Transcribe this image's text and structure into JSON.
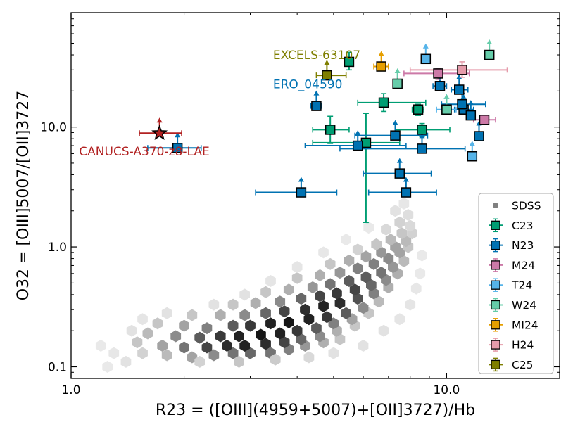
{
  "chart_data": {
    "type": "scatter",
    "title": "",
    "xlabel": "R23 = ([OIII](4959+5007)+[OII]3727)/Hb",
    "ylabel": "O32 = [OIII]5007/[OII]3727",
    "xscale": "log",
    "yscale": "log",
    "xlim": [
      1.0,
      20.0
    ],
    "ylim": [
      0.08,
      90.0
    ],
    "xticks": [
      {
        "value": 1.0,
        "label": "1.0"
      },
      {
        "value": 10.0,
        "label": "10.0"
      }
    ],
    "yticks": [
      {
        "value": 0.1,
        "label": "0.1"
      },
      {
        "value": 1.0,
        "label": "1.0"
      },
      {
        "value": 10.0,
        "label": "10.0"
      }
    ],
    "legend_position": "bottom-right",
    "background": {
      "name": "SDSS",
      "kind": "hexbin-density",
      "color": "#808080",
      "cells": [
        [
          1.55,
          0.13,
          0.15
        ],
        [
          1.8,
          0.125,
          0.25
        ],
        [
          2.1,
          0.12,
          0.35
        ],
        [
          2.4,
          0.125,
          0.45
        ],
        [
          2.7,
          0.13,
          0.55
        ],
        [
          3.0,
          0.13,
          0.6
        ],
        [
          3.4,
          0.13,
          0.55
        ],
        [
          3.8,
          0.14,
          0.5
        ],
        [
          4.2,
          0.15,
          0.4
        ],
        [
          4.7,
          0.16,
          0.3
        ],
        [
          5.2,
          0.17,
          0.2
        ],
        [
          1.5,
          0.16,
          0.2
        ],
        [
          1.75,
          0.15,
          0.35
        ],
        [
          2.0,
          0.145,
          0.55
        ],
        [
          2.3,
          0.145,
          0.75
        ],
        [
          2.6,
          0.15,
          0.85
        ],
        [
          2.9,
          0.15,
          0.9
        ],
        [
          3.3,
          0.155,
          0.85
        ],
        [
          3.7,
          0.16,
          0.75
        ],
        [
          4.1,
          0.17,
          0.6
        ],
        [
          4.6,
          0.18,
          0.45
        ],
        [
          5.1,
          0.2,
          0.3
        ],
        [
          5.7,
          0.22,
          0.2
        ],
        [
          1.6,
          0.19,
          0.25
        ],
        [
          1.9,
          0.18,
          0.45
        ],
        [
          2.2,
          0.175,
          0.65
        ],
        [
          2.5,
          0.18,
          0.8
        ],
        [
          2.8,
          0.18,
          0.9
        ],
        [
          3.2,
          0.185,
          0.95
        ],
        [
          3.6,
          0.19,
          0.9
        ],
        [
          4.0,
          0.2,
          0.8
        ],
        [
          4.5,
          0.21,
          0.65
        ],
        [
          5.0,
          0.23,
          0.5
        ],
        [
          5.6,
          0.25,
          0.35
        ],
        [
          6.2,
          0.28,
          0.2
        ],
        [
          1.7,
          0.23,
          0.2
        ],
        [
          2.0,
          0.22,
          0.35
        ],
        [
          2.3,
          0.21,
          0.5
        ],
        [
          2.7,
          0.22,
          0.65
        ],
        [
          3.0,
          0.22,
          0.8
        ],
        [
          3.4,
          0.23,
          0.9
        ],
        [
          3.8,
          0.235,
          0.95
        ],
        [
          4.3,
          0.25,
          0.9
        ],
        [
          4.8,
          0.26,
          0.8
        ],
        [
          5.4,
          0.28,
          0.65
        ],
        [
          6.0,
          0.31,
          0.45
        ],
        [
          6.6,
          0.35,
          0.25
        ],
        [
          2.1,
          0.27,
          0.2
        ],
        [
          2.5,
          0.27,
          0.3
        ],
        [
          2.9,
          0.27,
          0.45
        ],
        [
          3.3,
          0.28,
          0.6
        ],
        [
          3.7,
          0.29,
          0.75
        ],
        [
          4.2,
          0.3,
          0.85
        ],
        [
          4.7,
          0.32,
          0.9
        ],
        [
          5.2,
          0.34,
          0.85
        ],
        [
          5.8,
          0.37,
          0.7
        ],
        [
          6.4,
          0.41,
          0.5
        ],
        [
          7.0,
          0.46,
          0.3
        ],
        [
          2.7,
          0.33,
          0.2
        ],
        [
          3.1,
          0.34,
          0.3
        ],
        [
          3.6,
          0.35,
          0.45
        ],
        [
          4.1,
          0.37,
          0.6
        ],
        [
          4.6,
          0.39,
          0.75
        ],
        [
          5.1,
          0.41,
          0.8
        ],
        [
          5.7,
          0.44,
          0.75
        ],
        [
          6.3,
          0.48,
          0.6
        ],
        [
          6.9,
          0.53,
          0.45
        ],
        [
          7.4,
          0.6,
          0.3
        ],
        [
          3.3,
          0.42,
          0.2
        ],
        [
          3.8,
          0.44,
          0.3
        ],
        [
          4.4,
          0.46,
          0.4
        ],
        [
          4.9,
          0.49,
          0.55
        ],
        [
          5.5,
          0.52,
          0.65
        ],
        [
          6.1,
          0.56,
          0.65
        ],
        [
          6.7,
          0.61,
          0.55
        ],
        [
          7.2,
          0.68,
          0.4
        ],
        [
          7.7,
          0.76,
          0.25
        ],
        [
          4.0,
          0.55,
          0.2
        ],
        [
          4.6,
          0.58,
          0.3
        ],
        [
          5.2,
          0.61,
          0.4
        ],
        [
          5.8,
          0.66,
          0.5
        ],
        [
          6.4,
          0.72,
          0.5
        ],
        [
          7.0,
          0.8,
          0.45
        ],
        [
          7.5,
          0.9,
          0.35
        ],
        [
          7.9,
          1.0,
          0.2
        ],
        [
          4.9,
          0.72,
          0.2
        ],
        [
          5.5,
          0.77,
          0.3
        ],
        [
          6.1,
          0.83,
          0.35
        ],
        [
          6.7,
          0.9,
          0.4
        ],
        [
          7.3,
          1.0,
          0.35
        ],
        [
          7.8,
          1.12,
          0.25
        ],
        [
          8.1,
          1.3,
          0.15
        ],
        [
          5.8,
          0.95,
          0.15
        ],
        [
          6.5,
          1.05,
          0.2
        ],
        [
          7.1,
          1.15,
          0.25
        ],
        [
          7.6,
          1.3,
          0.2
        ],
        [
          8.0,
          1.5,
          0.12
        ],
        [
          6.9,
          1.4,
          0.12
        ],
        [
          7.5,
          1.6,
          0.15
        ],
        [
          7.9,
          1.85,
          0.1
        ],
        [
          7.7,
          2.3,
          0.06
        ],
        [
          7.3,
          2.0,
          0.08
        ],
        [
          1.4,
          0.11,
          0.08
        ],
        [
          1.3,
          0.13,
          0.06
        ],
        [
          1.25,
          0.1,
          0.05
        ],
        [
          1.2,
          0.15,
          0.05
        ],
        [
          1.45,
          0.2,
          0.08
        ],
        [
          1.55,
          0.25,
          0.07
        ],
        [
          1.8,
          0.28,
          0.08
        ],
        [
          2.2,
          0.11,
          0.15
        ],
        [
          2.8,
          0.11,
          0.2
        ],
        [
          3.5,
          0.115,
          0.18
        ],
        [
          4.3,
          0.12,
          0.12
        ],
        [
          5.0,
          0.13,
          0.08
        ],
        [
          6.0,
          0.15,
          0.08
        ],
        [
          6.8,
          0.2,
          0.08
        ],
        [
          7.5,
          0.25,
          0.07
        ],
        [
          8.0,
          0.33,
          0.07
        ],
        [
          8.3,
          0.45,
          0.06
        ],
        [
          8.5,
          0.6,
          0.05
        ],
        [
          8.6,
          0.85,
          0.05
        ],
        [
          2.4,
          0.33,
          0.08
        ],
        [
          2.9,
          0.4,
          0.08
        ],
        [
          3.4,
          0.52,
          0.07
        ],
        [
          4.0,
          0.68,
          0.07
        ],
        [
          4.7,
          0.9,
          0.06
        ],
        [
          5.4,
          1.15,
          0.05
        ],
        [
          6.2,
          1.45,
          0.05
        ]
      ]
    },
    "series": [
      {
        "name": "C23",
        "color": "#009E73",
        "marker": "square",
        "points": [
          {
            "x": 5.5,
            "y": 35,
            "xerr": [
              0,
              0
            ],
            "yerr": [
              5,
              7
            ]
          },
          {
            "x": 6.8,
            "y": 16,
            "xerr": [
              1.0,
              2.0
            ],
            "yerr": [
              2.5,
              3
            ]
          },
          {
            "x": 8.4,
            "y": 14,
            "xerr": [
              0.3,
              0.3
            ],
            "yerr": [
              1.5,
              1.5
            ]
          },
          {
            "x": 8.6,
            "y": 9.5,
            "xerr": [
              1.3,
              1.6
            ],
            "yerr": [
              1.2,
              1.2
            ]
          },
          {
            "x": 4.9,
            "y": 9.5,
            "xerr": [
              0.5,
              0.6
            ],
            "yerr": [
              2.2,
              2.8
            ]
          },
          {
            "x": 6.1,
            "y": 7.4,
            "xerr": [
              1.7,
              1.4
            ],
            "yerr": [
              5.8,
              5.6
            ]
          }
        ]
      },
      {
        "name": "N23",
        "color": "#0072B2",
        "marker": "square",
        "points": [
          {
            "x": 1.92,
            "y": 6.7,
            "xerr": [
              0.32,
              0.3
            ],
            "yerr": [
              0,
              0
            ],
            "lower_limit": true
          },
          {
            "x": 4.1,
            "y": 2.85,
            "xerr": [
              1.0,
              1.0
            ],
            "yerr": [
              0,
              0
            ],
            "lower_limit": true
          },
          {
            "x": 4.5,
            "y": 15,
            "xerr": [
              0.15,
              0.15
            ],
            "yerr": [
              0,
              0
            ],
            "lower_limit": true
          },
          {
            "x": 5.8,
            "y": 7.0,
            "xerr": [
              1.6,
              2.0
            ],
            "yerr": [
              0,
              0
            ],
            "lower_limit": true
          },
          {
            "x": 7.3,
            "y": 8.5,
            "xerr": [
              1.6,
              1.6
            ],
            "yerr": [
              0,
              0
            ],
            "lower_limit": true
          },
          {
            "x": 8.6,
            "y": 6.6,
            "xerr": [
              3.4,
              2.6
            ],
            "yerr": [
              0,
              0
            ],
            "lower_limit": true
          },
          {
            "x": 7.5,
            "y": 4.1,
            "xerr": [
              1.5,
              1.6
            ],
            "yerr": [
              0,
              0
            ],
            "lower_limit": true
          },
          {
            "x": 7.8,
            "y": 2.85,
            "xerr": [
              1.6,
              1.6
            ],
            "yerr": [
              0,
              0
            ],
            "lower_limit": true
          },
          {
            "x": 9.6,
            "y": 22,
            "xerr": [
              0.4,
              0.4
            ],
            "yerr": [
              0,
              0
            ],
            "lower_limit": true
          },
          {
            "x": 10.8,
            "y": 20.5,
            "xerr": [
              0.5,
              0.6
            ],
            "yerr": [
              0,
              0
            ],
            "lower_limit": true
          },
          {
            "x": 11.1,
            "y": 14,
            "xerr": [
              0.6,
              0.7
            ],
            "yerr": [
              0,
              0
            ],
            "lower_limit": true
          },
          {
            "x": 11.6,
            "y": 12.5,
            "xerr": [
              0.3,
              0.3
            ],
            "yerr": [
              0,
              0
            ],
            "lower_limit": true
          },
          {
            "x": 12.2,
            "y": 8.4,
            "xerr": [
              0,
              0
            ],
            "yerr": [
              0,
              0
            ],
            "lower_limit": true
          },
          {
            "x": 11.0,
            "y": 15.5,
            "xerr": [
              1.3,
              1.7
            ],
            "yerr": [
              0,
              0
            ],
            "lower_limit": true
          }
        ]
      },
      {
        "name": "M24",
        "color": "#CC79A7",
        "marker": "square",
        "points": [
          {
            "x": 9.5,
            "y": 28,
            "xerr": [
              1.8,
              2.0
            ],
            "yerr": [
              3,
              3
            ]
          },
          {
            "x": 12.6,
            "y": 11.5,
            "xerr": [
              0.8,
              0.9
            ],
            "yerr": [
              0.8,
              0.8
            ]
          }
        ]
      },
      {
        "name": "T24",
        "color": "#56B4E9",
        "marker": "square",
        "points": [
          {
            "x": 8.8,
            "y": 37,
            "xerr": [
              0,
              0
            ],
            "yerr": [
              0,
              0
            ],
            "lower_limit": true
          },
          {
            "x": 11.7,
            "y": 5.7,
            "xerr": [
              0,
              0
            ],
            "yerr": [
              0,
              0
            ],
            "lower_limit": true
          },
          {
            "x": 10.0,
            "y": 14,
            "xerr": [
              0.6,
              0.6
            ],
            "yerr": [
              0,
              0
            ],
            "lower_limit": true
          }
        ]
      },
      {
        "name": "W24",
        "color": "#66CDAA",
        "marker": "square",
        "points": [
          {
            "x": 7.4,
            "y": 23,
            "xerr": [
              0,
              0
            ],
            "yerr": [
              0,
              0
            ],
            "lower_limit": true
          },
          {
            "x": 13.0,
            "y": 40,
            "xerr": [
              0,
              0
            ],
            "yerr": [
              0,
              0
            ],
            "lower_limit": true
          },
          {
            "x": 10.0,
            "y": 14,
            "xerr": [
              0,
              0
            ],
            "yerr": [
              0,
              0
            ],
            "lower_limit": true
          }
        ]
      },
      {
        "name": "MI24",
        "color": "#E69F00",
        "marker": "square",
        "points": [
          {
            "x": 6.7,
            "y": 32,
            "xerr": [
              0.3,
              0.3
            ],
            "yerr": [
              0,
              0
            ],
            "lower_limit": true
          }
        ]
      },
      {
        "name": "H24",
        "color": "#E59BAA",
        "marker": "square",
        "points": [
          {
            "x": 11.0,
            "y": 30,
            "xerr": [
              3.0,
              3.5
            ],
            "yerr": [
              4,
              5
            ]
          }
        ]
      },
      {
        "name": "C25",
        "color": "#7F7F00",
        "marker": "square",
        "points": [
          {
            "x": 4.8,
            "y": 27,
            "xerr": [
              0.3,
              0.6
            ],
            "yerr": [
              0,
              0
            ],
            "lower_limit": true
          }
        ]
      },
      {
        "name": "CANUCS-A370-z8-LAE",
        "color": "#B22222",
        "marker": "star",
        "in_legend": false,
        "points": [
          {
            "x": 1.72,
            "y": 8.9,
            "xerr": [
              0.2,
              0.25
            ],
            "yerr": [
              0,
              0
            ],
            "lower_limit": true
          }
        ]
      }
    ],
    "annotations": [
      {
        "text": "EXCELS-63107",
        "color": "#7F7F00",
        "x": 3.45,
        "y": 37
      },
      {
        "text": "ERO_04590",
        "color": "#0072B2",
        "x": 3.45,
        "y": 21
      },
      {
        "text": "CANUCS-A370-z8-LAE",
        "color": "#B22222",
        "x": 1.05,
        "y": 5.8
      }
    ],
    "legend_entries": [
      {
        "label": "SDSS",
        "color": "#808080",
        "marker": "circle"
      },
      {
        "label": "C23",
        "color": "#009E73",
        "marker": "square"
      },
      {
        "label": "N23",
        "color": "#0072B2",
        "marker": "square"
      },
      {
        "label": "M24",
        "color": "#CC79A7",
        "marker": "square"
      },
      {
        "label": "T24",
        "color": "#56B4E9",
        "marker": "square"
      },
      {
        "label": "W24",
        "color": "#66CDAA",
        "marker": "square"
      },
      {
        "label": "MI24",
        "color": "#E69F00",
        "marker": "square"
      },
      {
        "label": "H24",
        "color": "#E59BAA",
        "marker": "square"
      },
      {
        "label": "C25",
        "color": "#7F7F00",
        "marker": "square"
      }
    ]
  }
}
